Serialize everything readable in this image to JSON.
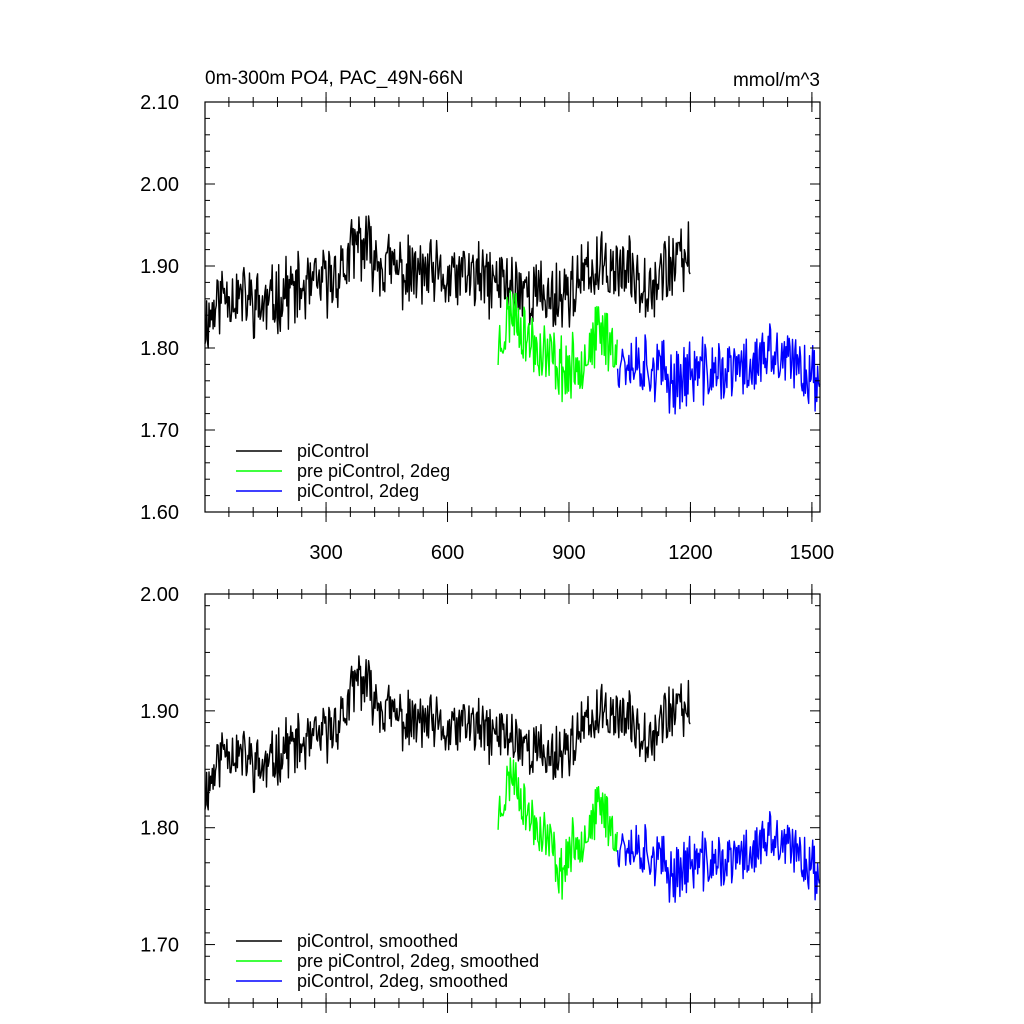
{
  "chart_data": [
    {
      "type": "line",
      "title": "0m-300m PO4, PAC_49N-66N",
      "units_label": "mmol/m^3",
      "xlim": [
        1,
        1520
      ],
      "ylim": [
        1.6,
        2.1
      ],
      "yticks": [
        1.6,
        1.7,
        1.8,
        1.9,
        2.0,
        2.1
      ],
      "ytick_labels": [
        "1.60",
        "1.70",
        "1.80",
        "1.90",
        "2.00",
        "2.10"
      ],
      "xticks": [
        300,
        600,
        900,
        1200,
        1500
      ],
      "xtick_labels": [
        "300",
        "600",
        "900",
        "1200",
        "1500"
      ],
      "legend_position": "bottom-left",
      "series": [
        {
          "name": "piControl",
          "color": "#000000",
          "x_start": 1,
          "x_end": 1200,
          "anchors": [
            [
              1,
              1.83
            ],
            [
              50,
              1.87
            ],
            [
              100,
              1.86
            ],
            [
              150,
              1.85
            ],
            [
              200,
              1.87
            ],
            [
              250,
              1.87
            ],
            [
              300,
              1.88
            ],
            [
              350,
              1.9
            ],
            [
              380,
              1.93
            ],
            [
              400,
              1.92
            ],
            [
              450,
              1.9
            ],
            [
              500,
              1.89
            ],
            [
              550,
              1.89
            ],
            [
              600,
              1.88
            ],
            [
              650,
              1.89
            ],
            [
              700,
              1.88
            ],
            [
              750,
              1.88
            ],
            [
              800,
              1.87
            ],
            [
              850,
              1.86
            ],
            [
              900,
              1.87
            ],
            [
              950,
              1.89
            ],
            [
              1000,
              1.9
            ],
            [
              1050,
              1.89
            ],
            [
              1100,
              1.88
            ],
            [
              1150,
              1.9
            ],
            [
              1200,
              1.91
            ]
          ],
          "noise": 0.038,
          "seed": 11
        },
        {
          "name": "pre piControl, 2deg",
          "color": "#00ff00",
          "x_start": 725,
          "x_end": 1020,
          "anchors": [
            [
              725,
              1.8
            ],
            [
              760,
              1.85
            ],
            [
              800,
              1.81
            ],
            [
              850,
              1.79
            ],
            [
              900,
              1.77
            ],
            [
              950,
              1.8
            ],
            [
              980,
              1.82
            ],
            [
              1020,
              1.8
            ]
          ],
          "noise": 0.035,
          "seed": 23
        },
        {
          "name": "piControl, 2deg",
          "color": "#0000ff",
          "x_start": 1020,
          "x_end": 1520,
          "anchors": [
            [
              1020,
              1.79
            ],
            [
              1100,
              1.78
            ],
            [
              1150,
              1.76
            ],
            [
              1200,
              1.77
            ],
            [
              1250,
              1.77
            ],
            [
              1300,
              1.77
            ],
            [
              1350,
              1.78
            ],
            [
              1400,
              1.79
            ],
            [
              1450,
              1.78
            ],
            [
              1500,
              1.77
            ],
            [
              1520,
              1.75
            ]
          ],
          "noise": 0.036,
          "seed": 37
        }
      ]
    },
    {
      "type": "line",
      "title": "",
      "xlim": [
        1,
        1520
      ],
      "ylim": [
        1.65,
        2.0
      ],
      "yticks": [
        1.7,
        1.8,
        1.9,
        2.0
      ],
      "ytick_labels": [
        "1.70",
        "1.80",
        "1.90",
        "2.00"
      ],
      "xticks": [
        300,
        600,
        900,
        1200,
        1500
      ],
      "xtick_labels": [],
      "legend_position": "bottom-left",
      "series": [
        {
          "name": "piControl, smoothed",
          "color": "#000000",
          "x_start": 1,
          "x_end": 1200,
          "anchors": [
            [
              1,
              1.83
            ],
            [
              50,
              1.87
            ],
            [
              100,
              1.86
            ],
            [
              150,
              1.85
            ],
            [
              200,
              1.87
            ],
            [
              250,
              1.87
            ],
            [
              300,
              1.88
            ],
            [
              350,
              1.9
            ],
            [
              380,
              1.93
            ],
            [
              400,
              1.92
            ],
            [
              450,
              1.9
            ],
            [
              500,
              1.89
            ],
            [
              550,
              1.89
            ],
            [
              600,
              1.88
            ],
            [
              650,
              1.89
            ],
            [
              700,
              1.88
            ],
            [
              750,
              1.88
            ],
            [
              800,
              1.87
            ],
            [
              850,
              1.86
            ],
            [
              900,
              1.87
            ],
            [
              950,
              1.89
            ],
            [
              1000,
              1.9
            ],
            [
              1050,
              1.89
            ],
            [
              1100,
              1.88
            ],
            [
              1150,
              1.9
            ],
            [
              1200,
              1.9
            ]
          ],
          "noise": 0.022,
          "seed": 11
        },
        {
          "name": "pre piControl, 2deg, smoothed",
          "color": "#00ff00",
          "x_start": 725,
          "x_end": 1020,
          "anchors": [
            [
              725,
              1.81
            ],
            [
              760,
              1.85
            ],
            [
              800,
              1.81
            ],
            [
              850,
              1.79
            ],
            [
              880,
              1.76
            ],
            [
              900,
              1.78
            ],
            [
              950,
              1.8
            ],
            [
              980,
              1.82
            ],
            [
              1020,
              1.79
            ]
          ],
          "noise": 0.02,
          "seed": 23
        },
        {
          "name": "piControl, 2deg, smoothed",
          "color": "#0000ff",
          "x_start": 1020,
          "x_end": 1520,
          "anchors": [
            [
              1020,
              1.79
            ],
            [
              1100,
              1.78
            ],
            [
              1150,
              1.76
            ],
            [
              1200,
              1.77
            ],
            [
              1250,
              1.77
            ],
            [
              1300,
              1.77
            ],
            [
              1350,
              1.78
            ],
            [
              1400,
              1.79
            ],
            [
              1450,
              1.78
            ],
            [
              1500,
              1.77
            ],
            [
              1520,
              1.75
            ]
          ],
          "noise": 0.022,
          "seed": 37
        }
      ]
    }
  ]
}
